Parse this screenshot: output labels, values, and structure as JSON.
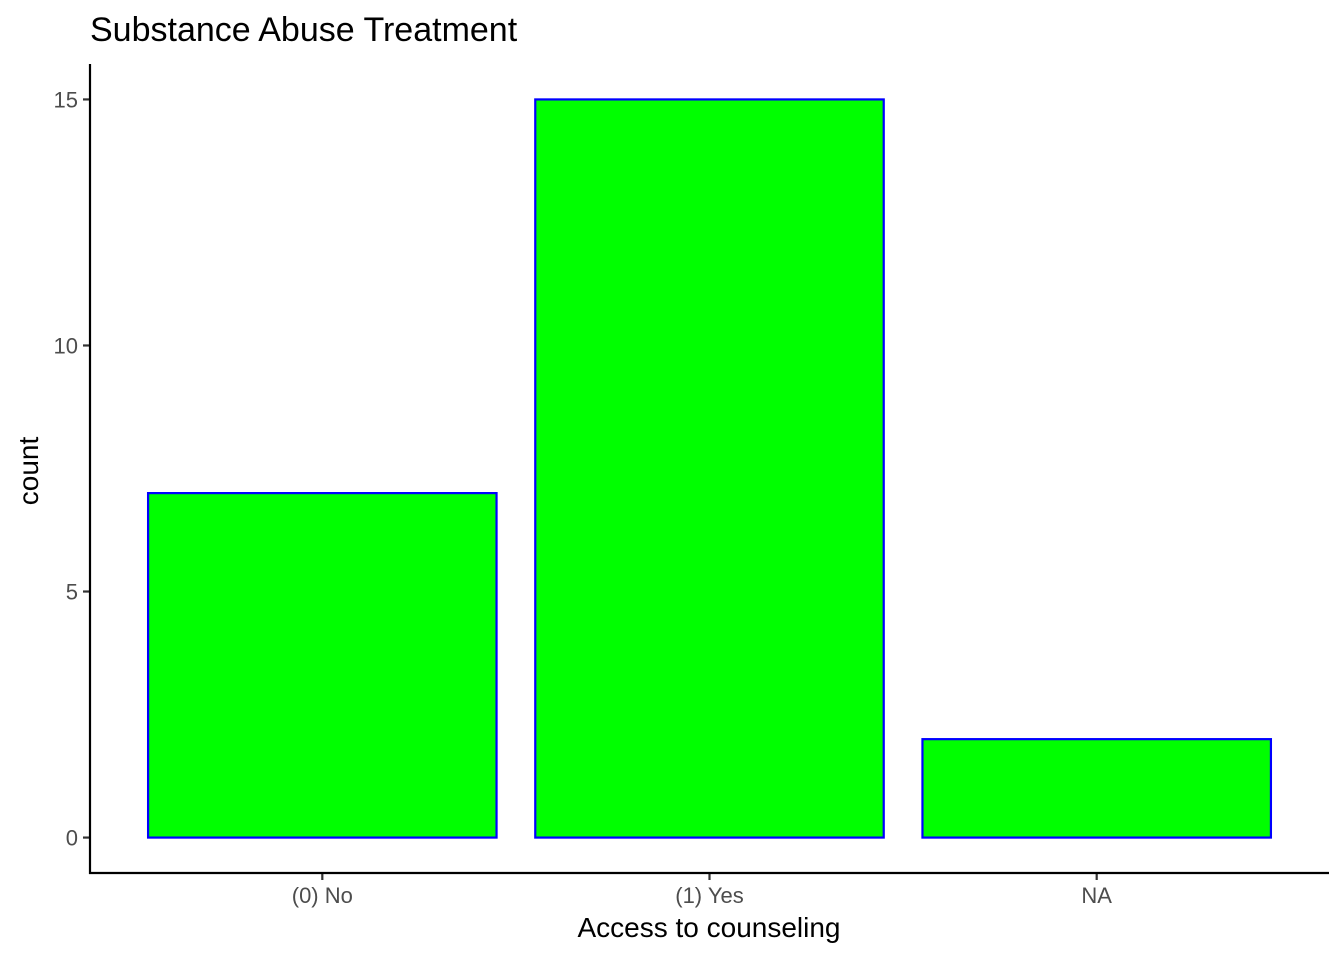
{
  "chart_data": {
    "type": "bar",
    "title": "Substance Abuse Treatment",
    "xlabel": "Access to counseling",
    "ylabel": "count",
    "categories": [
      "(0) No",
      "(1) Yes",
      "NA"
    ],
    "values": [
      7,
      15,
      2
    ],
    "ylim": [
      -0.72,
      15.72
    ],
    "yticks": [
      0,
      5,
      10,
      15
    ],
    "grid": false,
    "legend": "none",
    "colors": {
      "bar_fill": "#00ff00",
      "bar_outline": "#0000ff"
    }
  }
}
